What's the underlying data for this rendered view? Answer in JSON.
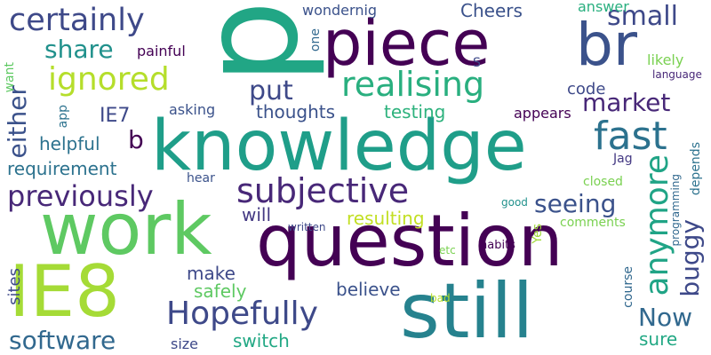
{
  "words": [
    {
      "id": "p",
      "text": "p",
      "color": "#21a685"
    },
    {
      "id": "knowledge",
      "text": "knowledge",
      "color": "#1f9e89"
    },
    {
      "id": "question",
      "text": "question",
      "color": "#440154"
    },
    {
      "id": "still",
      "text": "still",
      "color": "#26828e"
    },
    {
      "id": "ie8",
      "text": "IE8",
      "color": "#a5db36"
    },
    {
      "id": "work",
      "text": "work",
      "color": "#5ec962"
    },
    {
      "id": "piece",
      "text": "piece",
      "color": "#440154"
    },
    {
      "id": "br",
      "text": "br",
      "color": "#3b528b"
    },
    {
      "id": "certainly",
      "text": "certainly",
      "color": "#3e4989"
    },
    {
      "id": "ignored",
      "text": "ignored",
      "color": "#b5de2b"
    },
    {
      "id": "realising",
      "text": "realising",
      "color": "#29af7f"
    },
    {
      "id": "subjective",
      "text": "subjective",
      "color": "#482878"
    },
    {
      "id": "hopefully",
      "text": "Hopefully",
      "color": "#3e4989"
    },
    {
      "id": "previously",
      "text": "previously",
      "color": "#482878"
    },
    {
      "id": "fast",
      "text": "fast",
      "color": "#2c728e"
    },
    {
      "id": "market",
      "text": "market",
      "color": "#482878"
    },
    {
      "id": "small",
      "text": "small",
      "color": "#3e4989"
    },
    {
      "id": "share",
      "text": "share",
      "color": "#21918c"
    },
    {
      "id": "put",
      "text": "put",
      "color": "#3e4989"
    },
    {
      "id": "anymore",
      "text": "anymore",
      "color": "#20a486"
    },
    {
      "id": "buggy",
      "text": "buggy",
      "color": "#3e4989"
    },
    {
      "id": "software",
      "text": "software",
      "color": "#31688e"
    },
    {
      "id": "seeing",
      "text": "seeing",
      "color": "#3b528b"
    },
    {
      "id": "either",
      "text": "either",
      "color": "#3b528b"
    },
    {
      "id": "now",
      "text": "Now",
      "color": "#31688e"
    },
    {
      "id": "b",
      "text": "b",
      "color": "#440154"
    },
    {
      "id": "requirement",
      "text": "requirement",
      "color": "#2c728e"
    },
    {
      "id": "helpful",
      "text": "helpful",
      "color": "#2c728e"
    },
    {
      "id": "resulting",
      "text": "resulting",
      "color": "#c2df23"
    },
    {
      "id": "safely",
      "text": "safely",
      "color": "#5ec962"
    },
    {
      "id": "make",
      "text": "make",
      "color": "#3e4989"
    },
    {
      "id": "will",
      "text": "will",
      "color": "#443983"
    },
    {
      "id": "believe",
      "text": "believe",
      "color": "#3b528b"
    },
    {
      "id": "switch",
      "text": "switch",
      "color": "#22a884"
    },
    {
      "id": "sure",
      "text": "sure",
      "color": "#22a884"
    },
    {
      "id": "ie7",
      "text": "IE7",
      "color": "#3e4989"
    },
    {
      "id": "thoughts",
      "text": "thoughts",
      "color": "#3b528b"
    },
    {
      "id": "testing",
      "text": "testing",
      "color": "#2db27d"
    },
    {
      "id": "code",
      "text": "code",
      "color": "#3e4989"
    },
    {
      "id": "cheers",
      "text": "Cheers",
      "color": "#3b528b"
    },
    {
      "id": "wondernig",
      "text": "wondernig",
      "color": "#3b528b"
    },
    {
      "id": "answer",
      "text": "answer",
      "color": "#29af7f"
    },
    {
      "id": "painful",
      "text": "painful",
      "color": "#440154"
    },
    {
      "id": "asking",
      "text": "asking",
      "color": "#3b528b"
    },
    {
      "id": "appears",
      "text": "appears",
      "color": "#440154"
    },
    {
      "id": "likely",
      "text": "likely",
      "color": "#7ad151"
    },
    {
      "id": "language",
      "text": "language",
      "color": "#482878"
    },
    {
      "id": "hear",
      "text": "hear",
      "color": "#3b528b"
    },
    {
      "id": "closed",
      "text": "closed",
      "color": "#7ad151"
    },
    {
      "id": "comments",
      "text": "comments",
      "color": "#7ad151"
    },
    {
      "id": "habits",
      "text": "habits",
      "color": "#440154"
    },
    {
      "id": "course",
      "text": "course",
      "color": "#31688e"
    },
    {
      "id": "yes",
      "text": "Yes",
      "color": "#a0da39"
    },
    {
      "id": "jag",
      "text": "Jag",
      "color": "#443983"
    },
    {
      "id": "sites",
      "text": "sites",
      "color": "#3e4989"
    },
    {
      "id": "size",
      "text": "size",
      "color": "#3e4989"
    },
    {
      "id": "bad",
      "text": "bad",
      "color": "#b5de2b"
    },
    {
      "id": "etc",
      "text": "etc",
      "color": "#7ad151"
    },
    {
      "id": "written",
      "text": "written",
      "color": "#3e4989"
    },
    {
      "id": "good",
      "text": "good",
      "color": "#21918c"
    },
    {
      "id": "want",
      "text": "want",
      "color": "#5ec962"
    },
    {
      "id": "app",
      "text": "app",
      "color": "#2c728e"
    },
    {
      "id": "one",
      "text": "one",
      "color": "#31688e"
    },
    {
      "id": "s",
      "text": "S",
      "color": "#3e4989"
    },
    {
      "id": "programming",
      "text": "programming",
      "color": "#31688e"
    },
    {
      "id": "depends",
      "text": "depends",
      "color": "#2c728e"
    }
  ]
}
